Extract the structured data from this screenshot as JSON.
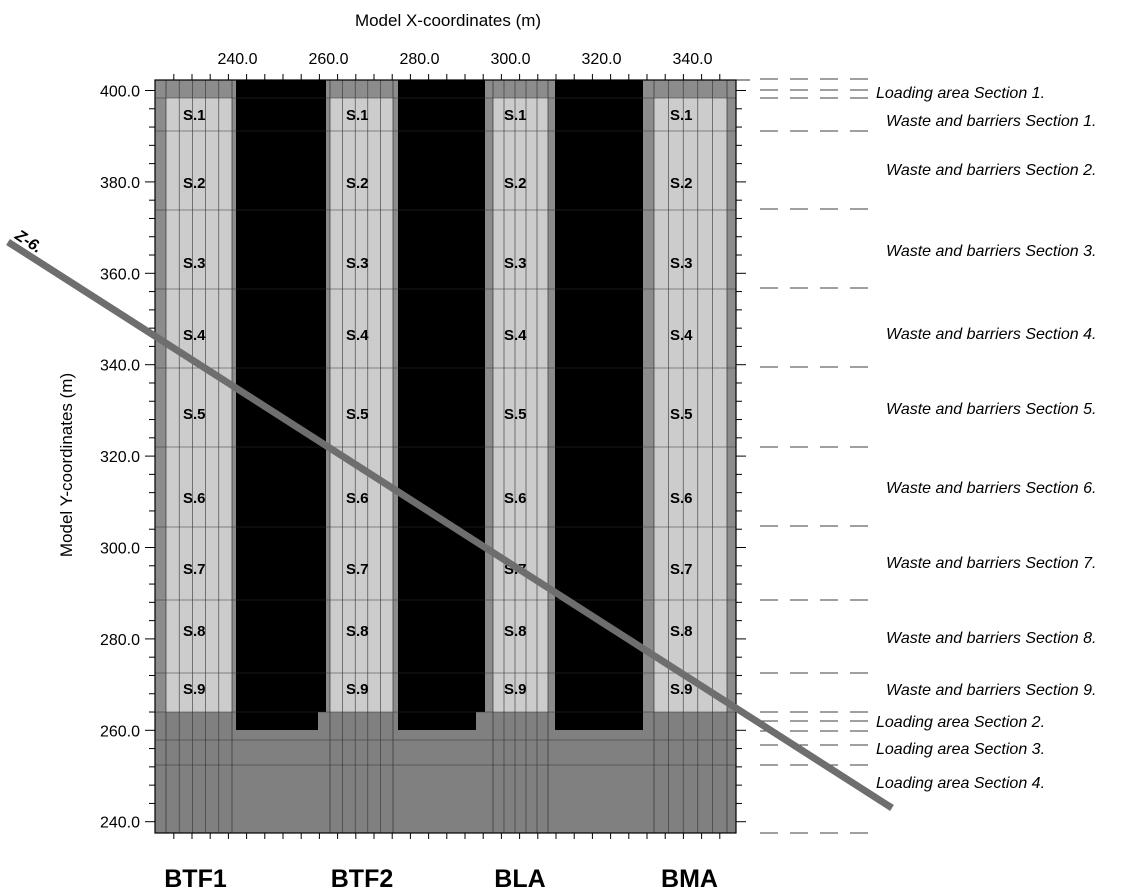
{
  "axes": {
    "xlabel": "Model X-coordinates (m)",
    "ylabel": "Model Y-coordinates (m)",
    "x_tick_labels": [
      "240.0",
      "260.0",
      "280.0",
      "300.0",
      "320.0",
      "340.0"
    ],
    "y_tick_labels": [
      "400.0",
      "380.0",
      "360.0",
      "340.0",
      "320.0",
      "300.0",
      "280.0",
      "260.0",
      "240.0"
    ]
  },
  "vaults": [
    {
      "name": "BTF1",
      "sections": [
        "S.1",
        "S.2",
        "S.3",
        "S.4",
        "S.5",
        "S.6",
        "S.7",
        "S.8",
        "S.9"
      ]
    },
    {
      "name": "BTF2",
      "sections": [
        "S.1",
        "S.2",
        "S.3",
        "S.4",
        "S.5",
        "S.6",
        "S.7",
        "S.8",
        "S.9"
      ]
    },
    {
      "name": "BLA",
      "sections": [
        "S.1",
        "S.2",
        "S.3",
        "S.4",
        "S.5",
        "S.6",
        "S.7",
        "S.8",
        "S.9"
      ]
    },
    {
      "name": "BMA",
      "sections": [
        "S.1",
        "S.2",
        "S.3",
        "S.4",
        "S.5",
        "S.6",
        "S.7",
        "S.8",
        "S.9"
      ]
    }
  ],
  "zone_labels": [
    "Loading area Section 1.",
    "Waste and barriers Section 1.",
    "Waste and barriers Section 2.",
    "Waste and barriers Section 3.",
    "Waste and barriers Section 4.",
    "Waste and barriers Section 5.",
    "Waste and barriers Section 6.",
    "Waste and barriers Section 7.",
    "Waste and barriers Section 8.",
    "Waste and barriers Section 9.",
    "Loading area Section 2.",
    "Loading area Section 3.",
    "Loading area Section 4."
  ],
  "fracture_zone": {
    "label": "Z-6."
  },
  "colors": {
    "rock": "#000000",
    "vault_wall": "#8c8c8c",
    "waste": "#cccccc",
    "loading_area": "#808080",
    "fracture_zone": "#6e6e6e"
  }
}
